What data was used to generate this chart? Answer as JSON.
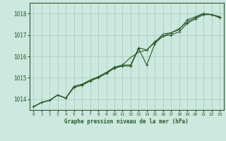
{
  "title": "Graphe pression niveau de la mer (hPa)",
  "background_color": "#cce8df",
  "grid_color": "#aacfbf",
  "line_color": "#2d5a2d",
  "xlim": [
    -0.5,
    23.5
  ],
  "ylim": [
    1013.5,
    1018.5
  ],
  "yticks": [
    1014,
    1015,
    1016,
    1017,
    1018
  ],
  "xticks": [
    0,
    1,
    2,
    3,
    4,
    5,
    6,
    7,
    8,
    9,
    10,
    11,
    12,
    13,
    14,
    15,
    16,
    17,
    18,
    19,
    20,
    21,
    22,
    23
  ],
  "series1_x": [
    0,
    1,
    2,
    3,
    4,
    5,
    6,
    7,
    8,
    9,
    10,
    11,
    12,
    13,
    14,
    15,
    16,
    17,
    18,
    19,
    20,
    21,
    22,
    23
  ],
  "series1_y": [
    1013.65,
    1013.85,
    1013.95,
    1014.2,
    1014.05,
    1014.55,
    1014.65,
    1014.85,
    1015.0,
    1015.2,
    1015.45,
    1015.55,
    1015.55,
    1016.35,
    1015.6,
    1016.6,
    1016.95,
    1017.0,
    1017.15,
    1017.55,
    1017.75,
    1017.95,
    1017.95,
    1017.85
  ],
  "series2_x": [
    0,
    1,
    2,
    3,
    4,
    5,
    6,
    7,
    8,
    9,
    10,
    11,
    12,
    13,
    14,
    15,
    16,
    17,
    18,
    19,
    20,
    21,
    22,
    23
  ],
  "series2_y": [
    1013.65,
    1013.85,
    1013.95,
    1014.2,
    1014.05,
    1014.6,
    1014.7,
    1014.85,
    1015.05,
    1015.25,
    1015.5,
    1015.6,
    1015.6,
    1016.4,
    1016.3,
    1016.7,
    1016.95,
    1017.1,
    1017.25,
    1017.7,
    1017.85,
    1018.0,
    1017.95,
    1017.8
  ],
  "series3_x": [
    0,
    1,
    2,
    3,
    4,
    5,
    6,
    7,
    8,
    9,
    10,
    11,
    12,
    13,
    14,
    15,
    16,
    17,
    18,
    19,
    20,
    21,
    22,
    23
  ],
  "series3_y": [
    1013.65,
    1013.85,
    1013.95,
    1014.2,
    1014.05,
    1014.6,
    1014.7,
    1014.9,
    1015.05,
    1015.25,
    1015.45,
    1015.6,
    1015.95,
    1016.2,
    1016.3,
    1016.65,
    1017.05,
    1017.1,
    1017.3,
    1017.6,
    1017.8,
    1018.0,
    1017.95,
    1017.85
  ]
}
